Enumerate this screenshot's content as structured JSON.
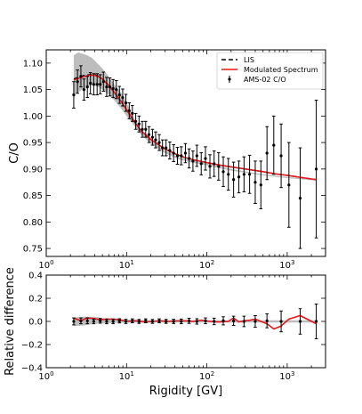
{
  "chart_data": [
    {
      "type": "line",
      "panel": "top",
      "xscale": "log",
      "xlim": [
        1,
        3000
      ],
      "ylim": [
        0.735,
        1.125
      ],
      "xticks": [
        1,
        10,
        100,
        1000
      ],
      "xtick_labels": [
        {
          "base": "10",
          "exp": "0"
        },
        {
          "base": "10",
          "exp": "1"
        },
        {
          "base": "10",
          "exp": "2"
        },
        {
          "base": "10",
          "exp": "3"
        }
      ],
      "yticks": [
        0.75,
        0.8,
        0.85,
        0.9,
        0.95,
        1.0,
        1.05,
        1.1
      ],
      "ytick_labels": [
        "0.75",
        "0.80",
        "0.85",
        "0.90",
        "0.95",
        "1.00",
        "1.05",
        "1.10"
      ],
      "ylabel": "C/O",
      "legend_position": "top-right",
      "legend": [
        {
          "label": "LIS",
          "style": "dashed",
          "color": "#000000"
        },
        {
          "label": "Modulated Spectrum",
          "style": "line",
          "color": "#e8161b"
        },
        {
          "label": "AMS-02 C/O",
          "style": "errorbar",
          "color": "#000000"
        }
      ],
      "band": {
        "color": "#bdbdbd",
        "x": [
          2.2,
          2.5,
          2.8,
          3.2,
          3.7,
          4.3,
          5,
          6,
          7,
          8.5,
          10,
          12,
          15,
          20,
          30,
          45,
          70,
          100,
          200,
          500,
          1000,
          2300
        ],
        "upper": [
          1.115,
          1.12,
          1.118,
          1.115,
          1.11,
          1.1,
          1.09,
          1.075,
          1.06,
          1.045,
          1.025,
          1.0,
          0.975,
          0.955,
          0.935,
          0.922,
          0.915,
          0.91,
          0.9,
          0.89,
          0.885,
          0.88
        ],
        "lower": [
          1.04,
          1.045,
          1.05,
          1.055,
          1.058,
          1.056,
          1.05,
          1.04,
          1.03,
          1.015,
          1.0,
          0.985,
          0.965,
          0.948,
          0.93,
          0.918,
          0.911,
          0.907,
          0.897,
          0.888,
          0.883,
          0.878
        ]
      },
      "series": [
        {
          "name": "LIS",
          "style": "dashed",
          "color": "#000000",
          "x": [
            2.2,
            2.5,
            3,
            3.5,
            4,
            4.5,
            5,
            6,
            7,
            8.5,
            10,
            12,
            15,
            20,
            25,
            30,
            40,
            50,
            70,
            100,
            150,
            200,
            300,
            500,
            700,
            1000,
            1500,
            2300
          ],
          "y": [
            1.07,
            1.073,
            1.077,
            1.078,
            1.078,
            1.075,
            1.07,
            1.058,
            1.045,
            1.028,
            1.012,
            0.993,
            0.973,
            0.956,
            0.946,
            0.938,
            0.929,
            0.923,
            0.917,
            0.912,
            0.907,
            0.904,
            0.9,
            0.895,
            0.891,
            0.888,
            0.884,
            0.88
          ]
        },
        {
          "name": "Modulated Spectrum",
          "style": "line",
          "color": "#e8161b",
          "x": [
            2.2,
            2.5,
            3,
            3.5,
            4,
            4.5,
            5,
            6,
            7,
            8.5,
            10,
            12,
            15,
            20,
            25,
            30,
            40,
            50,
            70,
            100,
            150,
            200,
            300,
            500,
            700,
            1000,
            1500,
            2300
          ],
          "y": [
            1.068,
            1.071,
            1.075,
            1.077,
            1.077,
            1.074,
            1.07,
            1.058,
            1.045,
            1.028,
            1.012,
            0.993,
            0.973,
            0.956,
            0.946,
            0.938,
            0.929,
            0.923,
            0.917,
            0.912,
            0.907,
            0.904,
            0.9,
            0.895,
            0.891,
            0.888,
            0.884,
            0.88
          ]
        },
        {
          "name": "AMS-02 C/O",
          "style": "errorbar",
          "color": "#000000",
          "x": [
            2.2,
            2.45,
            2.7,
            2.95,
            3.25,
            3.55,
            3.9,
            4.3,
            4.7,
            5.15,
            5.65,
            6.2,
            6.8,
            7.45,
            8.15,
            8.95,
            9.8,
            10.8,
            11.8,
            13,
            14.3,
            15.7,
            17.3,
            19,
            21,
            23,
            25.5,
            28,
            31,
            34.5,
            38.5,
            43,
            48,
            54,
            60,
            67,
            75,
            85,
            96,
            109,
            123,
            140,
            160,
            185,
            215,
            250,
            290,
            340,
            400,
            470,
            560,
            680,
            840,
            1050,
            1450,
            2300
          ],
          "y": [
            1.04,
            1.065,
            1.075,
            1.05,
            1.055,
            1.062,
            1.06,
            1.06,
            1.06,
            1.065,
            1.055,
            1.055,
            1.052,
            1.05,
            1.04,
            1.035,
            1.025,
            1.01,
            1.005,
            0.99,
            0.985,
            0.975,
            0.975,
            0.965,
            0.96,
            0.955,
            0.95,
            0.94,
            0.94,
            0.935,
            0.93,
            0.925,
            0.925,
            0.93,
            0.92,
            0.915,
            0.925,
            0.91,
            0.92,
            0.905,
            0.91,
            0.905,
            0.895,
            0.89,
            0.88,
            0.885,
            0.89,
            0.89,
            0.875,
            0.87,
            0.93,
            0.945,
            0.925,
            0.87,
            0.845,
            0.9
          ],
          "err": [
            0.025,
            0.022,
            0.02,
            0.02,
            0.02,
            0.02,
            0.02,
            0.02,
            0.018,
            0.018,
            0.018,
            0.017,
            0.017,
            0.017,
            0.016,
            0.016,
            0.016,
            0.015,
            0.015,
            0.015,
            0.015,
            0.015,
            0.015,
            0.015,
            0.015,
            0.015,
            0.015,
            0.015,
            0.015,
            0.016,
            0.016,
            0.016,
            0.017,
            0.018,
            0.018,
            0.019,
            0.02,
            0.021,
            0.022,
            0.022,
            0.024,
            0.026,
            0.028,
            0.03,
            0.033,
            0.03,
            0.033,
            0.036,
            0.04,
            0.045,
            0.05,
            0.055,
            0.06,
            0.08,
            0.095,
            0.13
          ]
        }
      ]
    },
    {
      "type": "line",
      "panel": "bottom",
      "xscale": "log",
      "xlim": [
        1,
        3000
      ],
      "ylim": [
        -0.4,
        0.4
      ],
      "xticks": [
        1,
        10,
        100,
        1000
      ],
      "xtick_labels": [
        {
          "base": "10",
          "exp": "0"
        },
        {
          "base": "10",
          "exp": "1"
        },
        {
          "base": "10",
          "exp": "2"
        },
        {
          "base": "10",
          "exp": "3"
        }
      ],
      "yticks": [
        -0.4,
        -0.2,
        0.0,
        0.2,
        0.4
      ],
      "ytick_labels": [
        "−0.4",
        "−0.2",
        "0.0",
        "0.2",
        "0.4"
      ],
      "xlabel": "Rigidity [GV]",
      "ylabel": "Relative difference",
      "band": {
        "color": "#bdbdbd",
        "x": [
          2.2,
          3,
          4,
          6,
          10,
          20,
          50,
          100,
          300,
          1000,
          2300
        ],
        "upper": [
          0.035,
          0.04,
          0.04,
          0.02,
          0.015,
          0.01,
          0.01,
          0.01,
          0.01,
          0.01,
          0.01
        ],
        "lower": [
          -0.04,
          -0.035,
          -0.02,
          -0.015,
          -0.01,
          -0.01,
          -0.01,
          -0.01,
          -0.01,
          -0.01,
          -0.01
        ]
      },
      "series": [
        {
          "name": "Modulated Spectrum",
          "style": "line",
          "color": "#e8161b",
          "x": [
            2.2,
            2.7,
            3.2,
            3.9,
            4.7,
            5.6,
            6.8,
            8.2,
            10,
            13,
            17,
            21,
            26,
            33,
            43,
            54,
            67,
            85,
            109,
            140,
            185,
            215,
            250,
            290,
            340,
            400,
            470,
            560,
            680,
            840,
            1050,
            1450,
            2300
          ],
          "y": [
            0.03,
            0.005,
            0.03,
            0.025,
            0.015,
            0.02,
            0.02,
            0.015,
            0.0,
            0.005,
            -0.005,
            0.0,
            0.005,
            0.0,
            0.005,
            0.005,
            0.0,
            0.01,
            0.0,
            -0.005,
            0.0,
            0.03,
            -0.005,
            0.005,
            0.01,
            0.02,
            0.0,
            -0.02,
            -0.065,
            -0.04,
            0.02,
            0.05,
            -0.02
          ]
        },
        {
          "name": "AMS-02 C/O",
          "style": "errorbar",
          "color": "#000000",
          "x": [
            2.2,
            2.7,
            3.25,
            3.9,
            4.7,
            5.65,
            6.8,
            8.15,
            9.8,
            11.8,
            14.3,
            17.3,
            21,
            25.5,
            31,
            38.5,
            48,
            60,
            75,
            96,
            123,
            160,
            215,
            290,
            400,
            560,
            840,
            1450,
            2300
          ],
          "y": [
            0.0,
            0.005,
            0.005,
            0.0,
            0.005,
            0.0,
            0.0,
            0.005,
            0.0,
            0.005,
            0.0,
            0.005,
            0.0,
            0.005,
            0.0,
            0.0,
            0.0,
            0.005,
            0.0,
            0.005,
            0.0,
            0.005,
            0.005,
            0.0,
            0.0,
            0.005,
            0.0,
            0.0,
            0.0
          ],
          "err": [
            0.03,
            0.025,
            0.025,
            0.02,
            0.02,
            0.02,
            0.02,
            0.018,
            0.018,
            0.017,
            0.017,
            0.017,
            0.017,
            0.017,
            0.017,
            0.018,
            0.02,
            0.022,
            0.023,
            0.025,
            0.028,
            0.035,
            0.04,
            0.045,
            0.05,
            0.06,
            0.09,
            0.11,
            0.15
          ]
        }
      ]
    }
  ]
}
